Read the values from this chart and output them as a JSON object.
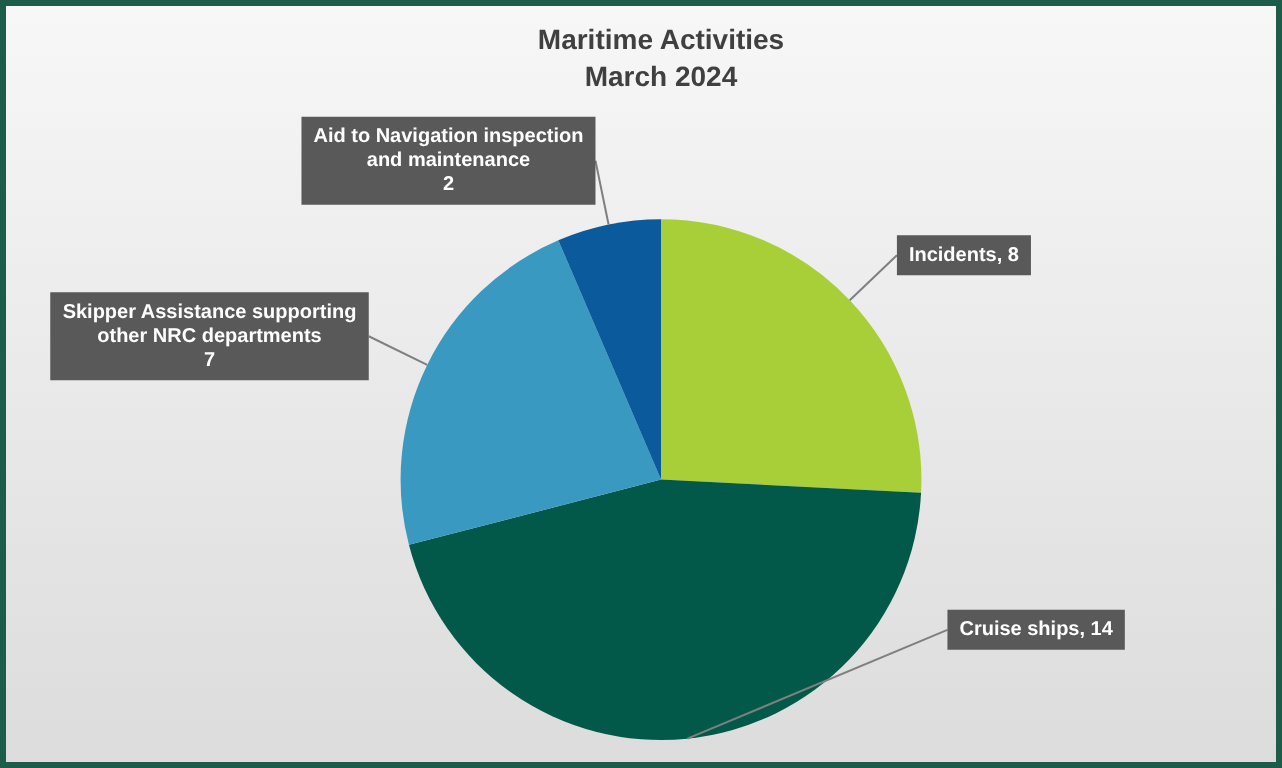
{
  "chart_data": {
    "type": "pie",
    "title": "Maritime Activities",
    "subtitle": "March 2024",
    "categories": [
      "Incidents",
      "Cruise ships",
      "Skipper Assistance supporting other NRC departments",
      "Aid to Navigation inspection and maintenance"
    ],
    "values": [
      8,
      14,
      7,
      2
    ],
    "colors": [
      "#a9cf38",
      "#02594a",
      "#3a99c0",
      "#0a5a9c"
    ],
    "value_labels": [
      ", 8",
      ", 14",
      "7",
      "2"
    ],
    "legend": false
  }
}
